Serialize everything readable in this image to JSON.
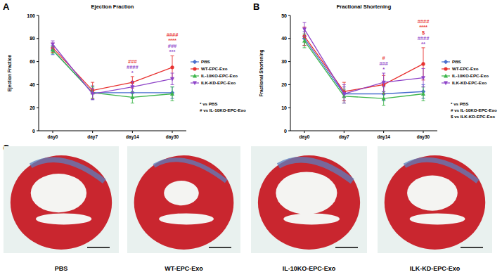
{
  "chart_data": [
    {
      "panel": "A",
      "type": "line",
      "title": "Ejection Fraction",
      "y_label": "Ejection Fraction",
      "categories": [
        "day0",
        "day7",
        "day14",
        "day30"
      ],
      "ylim": [
        0,
        100
      ],
      "yticks": [
        0,
        20,
        40,
        60,
        80,
        100
      ],
      "legend": "right",
      "notes": [
        "* vs PBS",
        "# vs IL-10KO-EPC-Exo"
      ],
      "series": [
        {
          "name": "PBS",
          "color": "#4a6fcf",
          "marker": "diamond",
          "values": [
            70,
            33,
            33,
            33
          ],
          "errors": [
            4,
            6,
            5,
            5
          ],
          "annotations": [
            null,
            null,
            null,
            null
          ]
        },
        {
          "name": "WT-EPC-Exo",
          "color": "#e8312f",
          "marker": "circle",
          "values": [
            72,
            35,
            42,
            55
          ],
          "errors": [
            4,
            7,
            5,
            10
          ],
          "annotations": [
            null,
            null,
            [
              "###"
            ],
            [
              "####",
              "****"
            ]
          ]
        },
        {
          "name": "IL-10KO-EPC-Exo",
          "color": "#3cb54a",
          "marker": "triangle",
          "values": [
            70,
            33,
            29,
            32
          ],
          "errors": [
            3,
            5,
            5,
            6
          ],
          "annotations": [
            null,
            null,
            null,
            null
          ]
        },
        {
          "name": "ILK-KD-EPC-Exo",
          "color": "#8e44c8",
          "marker": "triangle-down",
          "values": [
            75,
            32,
            38,
            45
          ],
          "errors": [
            3,
            5,
            5,
            5
          ],
          "annotations": [
            null,
            null,
            [
              "####",
              "*"
            ],
            [
              "###",
              "***"
            ]
          ]
        }
      ]
    },
    {
      "panel": "B",
      "type": "line",
      "title": "Fractional Shortening",
      "y_label": "Fractional Shortening",
      "categories": [
        "day0",
        "day7",
        "day14",
        "day30"
      ],
      "ylim": [
        0,
        50
      ],
      "yticks": [
        0,
        10,
        20,
        30,
        40,
        50
      ],
      "legend": "right",
      "notes": [
        "* vs PBS",
        "# vs IL-10KO-EPC-Exo",
        "$ vs ILK-KD-EPC-Exo"
      ],
      "series": [
        {
          "name": "PBS",
          "color": "#4a6fcf",
          "marker": "diamond",
          "values": [
            40,
            16,
            16,
            17
          ],
          "errors": [
            3,
            3,
            3,
            3
          ],
          "annotations": [
            null,
            null,
            null,
            null
          ]
        },
        {
          "name": "WT-EPC-Exo",
          "color": "#e8312f",
          "marker": "circle",
          "values": [
            41,
            17,
            20,
            29
          ],
          "errors": [
            4,
            4,
            4,
            7
          ],
          "annotations": [
            null,
            null,
            [
              "#"
            ],
            [
              "####",
              "****",
              "$"
            ]
          ]
        },
        {
          "name": "IL-10KO-EPC-Exo",
          "color": "#3cb54a",
          "marker": "triangle",
          "values": [
            39,
            15,
            14,
            16
          ],
          "errors": [
            3,
            3,
            3,
            3
          ],
          "annotations": [
            null,
            null,
            null,
            null
          ]
        },
        {
          "name": "ILK-KD-EPC-Exo",
          "color": "#8e44c8",
          "marker": "triangle-down",
          "values": [
            44,
            16,
            21,
            23
          ],
          "errors": [
            3,
            4,
            4,
            4
          ],
          "annotations": [
            null,
            null,
            [
              "###",
              "*"
            ],
            [
              "####",
              "**"
            ]
          ]
        }
      ]
    }
  ],
  "panel_c": {
    "panel": "C",
    "captions": [
      "PBS",
      "WT-EPC-Exo",
      "IL-10KO-EPC-Exo",
      "ILK-KD-EPC-Exo"
    ]
  }
}
